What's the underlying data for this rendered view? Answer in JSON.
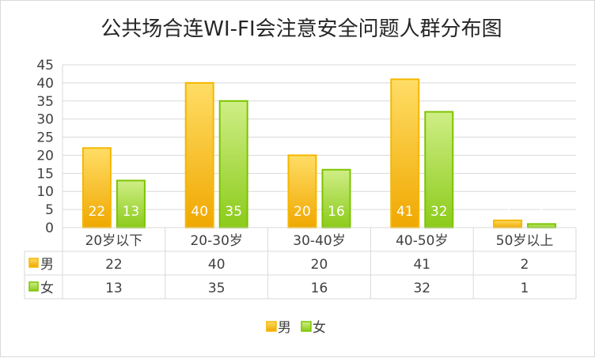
{
  "chart_data": {
    "type": "bar",
    "title": "公共场合连WI-FI会注意安全问题人群分布图",
    "categories": [
      "20岁以下",
      "20-30岁",
      "30-40岁",
      "40-50岁",
      "50岁以上"
    ],
    "series": [
      {
        "name": "男",
        "values": [
          22,
          40,
          20,
          41,
          2
        ],
        "color": "#F5B700",
        "fill_light": "#FFDD66",
        "fill_dark": "#F0A800"
      },
      {
        "name": "女",
        "values": [
          13,
          35,
          16,
          32,
          1
        ],
        "color": "#7CC400",
        "fill_light": "#CFEE86",
        "fill_dark": "#8CCB1A"
      }
    ],
    "ylim": [
      0,
      45
    ],
    "yticks": [
      0,
      5,
      10,
      15,
      20,
      25,
      30,
      35,
      40,
      45
    ],
    "grid": true,
    "data_table": true,
    "legend_position": "bottom"
  }
}
